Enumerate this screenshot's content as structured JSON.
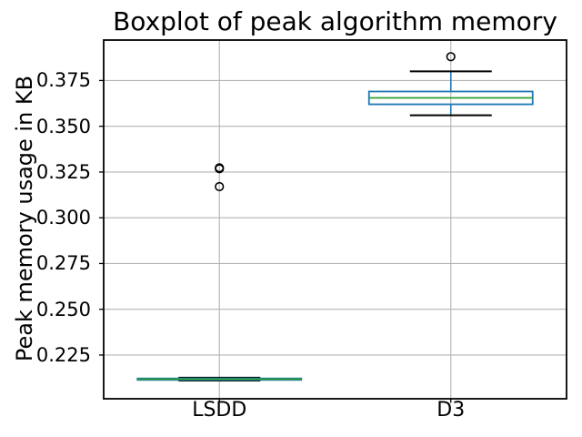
{
  "chart_data": {
    "type": "boxplot",
    "title": "Boxplot of peak algorithm memory",
    "ylabel": "Peak memory usage in KB",
    "xlabel": "",
    "categories": [
      "LSDD",
      "D3"
    ],
    "grid": true,
    "legend": false,
    "ylim": [
      0.2011,
      0.3971
    ],
    "yticks": [
      0.375,
      0.35,
      0.325,
      0.3,
      0.275,
      0.25,
      0.225
    ],
    "ytick_labels": [
      "0.375",
      "0.350",
      "0.325",
      "0.300",
      "0.275",
      "0.250",
      "0.225"
    ],
    "series": [
      {
        "name": "LSDD",
        "whislo": 0.211,
        "q1": 0.2114,
        "med": 0.2118,
        "q3": 0.2122,
        "whishi": 0.2126,
        "fliers": [
          0.317,
          0.3268,
          0.3273
        ]
      },
      {
        "name": "D3",
        "whislo": 0.356,
        "q1": 0.362,
        "med": 0.3655,
        "q3": 0.369,
        "whishi": 0.38,
        "fliers": [
          0.388
        ]
      }
    ],
    "colors": {
      "box": "#1f77b4",
      "whisker": "#1f77b4",
      "median": "#2ca02c",
      "cap": "#000000",
      "flier_edge": "#000000",
      "grid": "#b3b3b3",
      "frame": "#000000",
      "text": "#000000"
    }
  }
}
